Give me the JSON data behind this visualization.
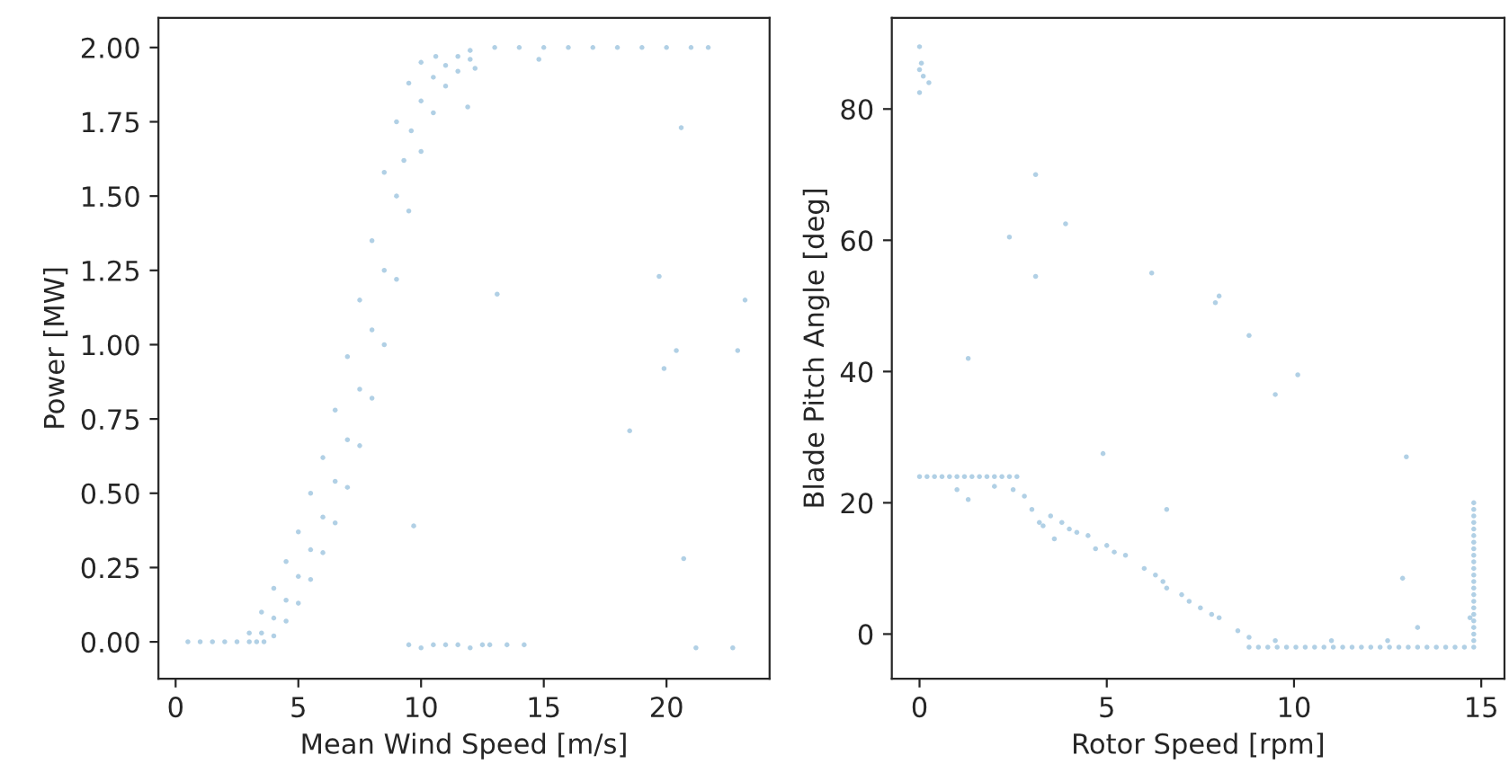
{
  "chart_data": [
    {
      "type": "scatter",
      "xlabel": "Mean Wind Speed [m/s]",
      "ylabel": "Power [MW]",
      "xlim": [
        -0.7,
        24.2
      ],
      "ylim": [
        -0.124,
        2.1
      ],
      "xticks": [
        0,
        5,
        10,
        15,
        20
      ],
      "yticks": [
        {
          "value": 0,
          "label": "0.00"
        },
        {
          "value": 0.25,
          "label": "0.25"
        },
        {
          "value": 0.5,
          "label": "0.50"
        },
        {
          "value": 0.75,
          "label": "0.75"
        },
        {
          "value": 1,
          "label": "1.00"
        },
        {
          "value": 1.25,
          "label": "1.25"
        },
        {
          "value": 1.5,
          "label": "1.50"
        },
        {
          "value": 1.75,
          "label": "1.75"
        },
        {
          "value": 2,
          "label": "2.00"
        }
      ],
      "grid": false,
      "legend": false,
      "marker": "circle",
      "series": [
        {
          "color": "#1f77b4",
          "x": [
            0.5,
            1,
            1.5,
            2,
            2.5,
            3,
            3.3,
            3.6,
            3.5,
            4,
            4.5,
            5,
            5.5,
            6,
            6.5,
            7,
            7.5,
            8,
            8.5,
            9,
            9.3,
            9.6,
            10,
            10.5,
            11,
            11.5,
            12,
            13,
            14,
            15,
            16,
            17,
            18,
            19,
            20,
            21,
            21.7,
            3,
            3.5,
            4,
            4.5,
            5,
            5.5,
            6,
            6.5,
            7,
            7.5,
            8,
            8.5,
            9,
            9.5,
            10,
            10.6,
            4,
            4.5,
            5,
            5.5,
            6,
            6.5,
            7,
            7.5,
            8,
            8.5,
            9,
            9.5,
            10,
            10.5,
            11,
            11.5,
            12,
            9.7,
            13.1,
            19.7,
            20.6,
            20.4,
            19.9,
            18.5,
            20.7,
            23.2,
            22.9,
            21.2,
            22.7,
            9.5,
            10,
            10.5,
            11,
            11.5,
            12,
            12.5,
            12.8,
            13.5,
            14.2,
            11.9,
            12.2,
            14.8
          ],
          "values": [
            0,
            0,
            0,
            0,
            0,
            0,
            0,
            0,
            0.03,
            0.08,
            0.14,
            0.22,
            0.31,
            0.42,
            0.54,
            0.68,
            0.85,
            1.05,
            1.25,
            1.5,
            1.62,
            1.72,
            1.82,
            1.9,
            1.94,
            1.97,
            1.99,
            2,
            2,
            2,
            2,
            2,
            2,
            2,
            2,
            2,
            2,
            0.03,
            0.1,
            0.18,
            0.27,
            0.37,
            0.5,
            0.62,
            0.78,
            0.96,
            1.15,
            1.35,
            1.58,
            1.75,
            1.88,
            1.95,
            1.97,
            0.02,
            0.07,
            0.13,
            0.21,
            0.3,
            0.4,
            0.52,
            0.66,
            0.82,
            1,
            1.22,
            1.45,
            1.65,
            1.78,
            1.87,
            1.92,
            1.96,
            0.39,
            1.17,
            1.23,
            1.73,
            0.98,
            0.92,
            0.71,
            0.28,
            1.15,
            0.98,
            -0.02,
            -0.02,
            -0.01,
            -0.02,
            -0.01,
            -0.01,
            -0.01,
            -0.02,
            -0.01,
            -0.01,
            -0.01,
            -0.01,
            1.8,
            1.93,
            1.96
          ]
        }
      ]
    },
    {
      "type": "scatter",
      "xlabel": "Rotor Speed [rpm]",
      "ylabel": "Blade Pitch Angle [deg]",
      "xlim": [
        -0.74,
        15.62
      ],
      "ylim": [
        -6.8,
        93.9
      ],
      "xticks": [
        0,
        5,
        10,
        15
      ],
      "yticks": [
        0,
        20,
        40,
        60,
        80
      ],
      "grid": false,
      "legend": false,
      "marker": "circle",
      "series": [
        {
          "color": "#1f77b4",
          "x": [
            0,
            0,
            0,
            0.1,
            0.25,
            0.05,
            0,
            0.2,
            0.4,
            0.6,
            0.8,
            1,
            1.2,
            1.4,
            1.6,
            1.8,
            2,
            2.2,
            2.4,
            2.6,
            1,
            1.3,
            2,
            2.5,
            2.8,
            3,
            3.2,
            3.5,
            3.8,
            4,
            4.5,
            5,
            5.5,
            6,
            6.5,
            7,
            7.5,
            8,
            8.5,
            8.8,
            3.3,
            4.2,
            5.2,
            6.3,
            7.2,
            7.8,
            3.6,
            4.7,
            6.6,
            8.8,
            9.05,
            9.3,
            9.55,
            9.8,
            10.05,
            10.3,
            10.55,
            10.8,
            11.05,
            11.3,
            11.55,
            11.8,
            12.05,
            12.3,
            12.55,
            12.8,
            13.05,
            13.3,
            13.55,
            13.8,
            14.05,
            14.3,
            14.55,
            14.8,
            9.5,
            11,
            12.5,
            14.8,
            14.8,
            14.8,
            14.8,
            14.8,
            14.8,
            14.8,
            14.8,
            14.8,
            14.8,
            14.8,
            14.8,
            14.8,
            14.8,
            14.8,
            14.8,
            14.8,
            14.8,
            14.8,
            14.8,
            14.8,
            14.8,
            1.3,
            2.4,
            3.1,
            3.1,
            3.9,
            4.9,
            6.2,
            6.6,
            7.9,
            8,
            8.8,
            9.5,
            10.1,
            13,
            12.9,
            13.3,
            14.7
          ],
          "values": [
            86,
            89.5,
            82.5,
            85,
            84,
            87,
            24,
            24,
            24,
            24,
            24,
            24,
            24,
            24,
            24,
            24,
            24,
            24,
            24,
            24,
            22,
            20.5,
            22.5,
            22,
            21,
            19,
            17,
            18,
            17,
            16,
            15,
            13.5,
            12,
            10,
            8,
            6,
            4,
            2.5,
            0.5,
            -0.5,
            16.5,
            15.5,
            12.5,
            9,
            5,
            3,
            14.5,
            13,
            7,
            -2,
            -2,
            -2,
            -2,
            -2,
            -2,
            -2,
            -2,
            -2,
            -2,
            -2,
            -2,
            -2,
            -2,
            -2,
            -2,
            -2,
            -2,
            -2,
            -2,
            -2,
            -2,
            -2,
            -2,
            -2,
            -1,
            -1,
            -1,
            -1,
            0,
            1,
            2,
            3,
            4,
            5,
            6,
            7,
            8,
            9,
            10,
            11,
            12,
            13,
            14,
            15,
            16,
            17,
            18,
            19,
            20,
            42,
            60.5,
            54.5,
            70,
            62.5,
            27.5,
            55,
            19,
            50.5,
            51.5,
            45.5,
            36.5,
            39.5,
            27,
            8.5,
            1,
            2.5
          ]
        }
      ]
    }
  ]
}
